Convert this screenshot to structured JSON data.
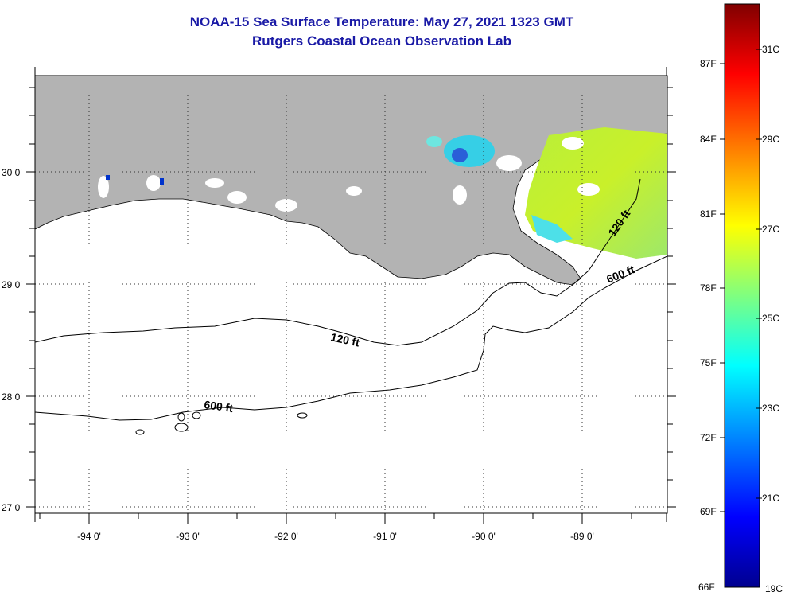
{
  "title": "NOAA-15 Sea Surface Temperature:  May 27, 2021 1323 GMT",
  "subtitle": "Rutgers Coastal Ocean Observation Lab",
  "map": {
    "lon_ticks": [
      "-94 0'",
      "-93 0'",
      "-92 0'",
      "-91 0'",
      "-90 0'",
      "-89 0'"
    ],
    "lat_ticks": [
      "30 0'",
      "29 0'",
      "28 0'",
      "27 0'"
    ],
    "contours": [
      "120 ft",
      "120 ft",
      "600 ft",
      "600 ft"
    ],
    "land_color": "#b3b3b3",
    "ocean_color": "#ffffff"
  },
  "colorbar": {
    "f_labels": [
      "87F",
      "84F",
      "81F",
      "78F",
      "75F",
      "72F",
      "69F",
      "66F"
    ],
    "c_labels": [
      "31C",
      "29C",
      "27C",
      "25C",
      "23C",
      "21C",
      "19C"
    ],
    "colors": [
      "#00008f",
      "#0000ff",
      "#00ffff",
      "#ffff00",
      "#ff0000",
      "#800000"
    ]
  }
}
